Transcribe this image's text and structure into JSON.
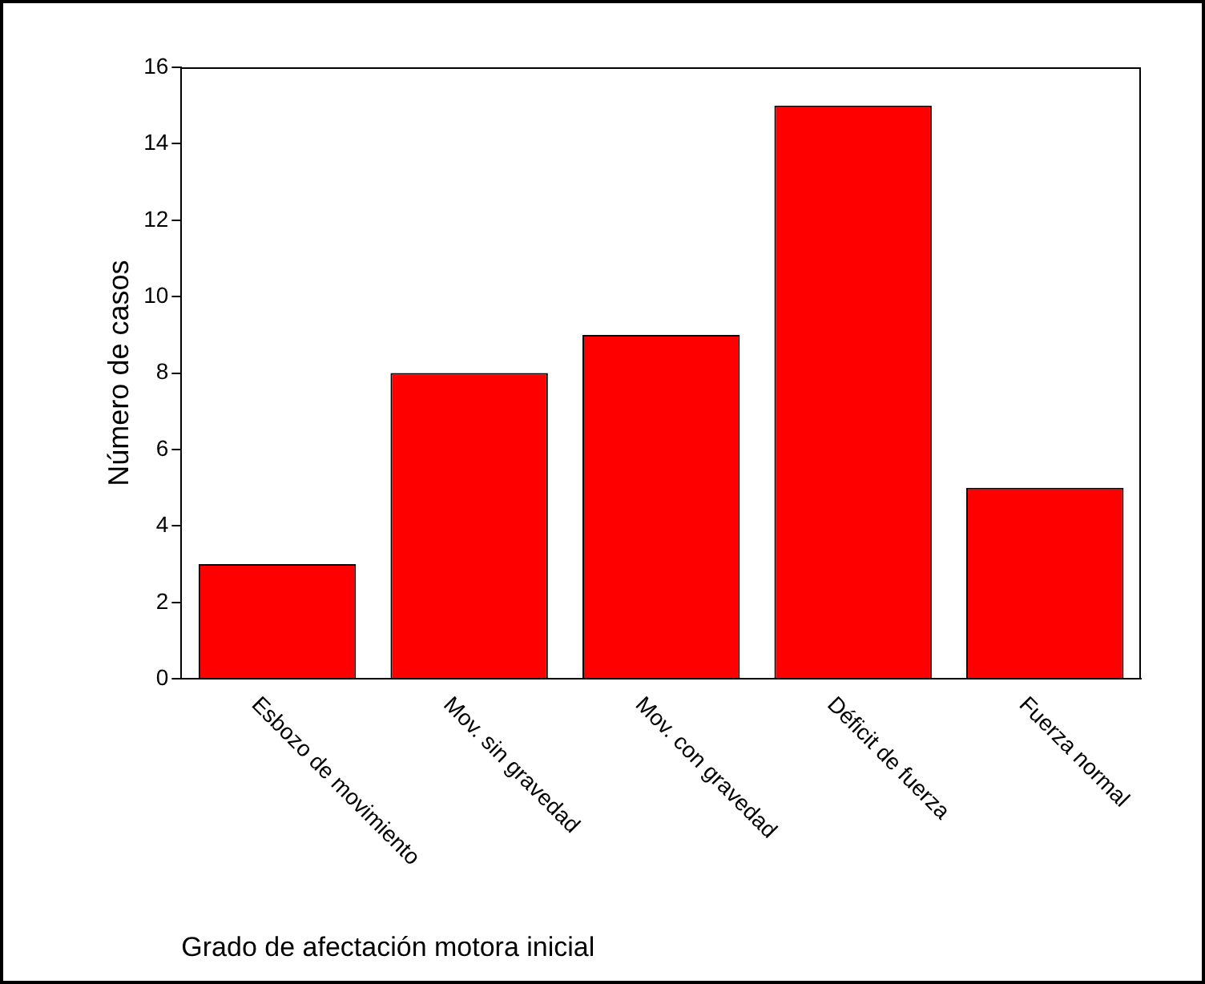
{
  "chart_data": {
    "type": "bar",
    "xlabel": "Grado de afectación motora inicial",
    "ylabel": "Número de casos",
    "categories": [
      "Esbozo de movimiento",
      "Mov. sin gravedad",
      "Mov. con gravedad",
      "Déficit de fuerza",
      "Fuerza normal"
    ],
    "values": [
      3,
      8,
      9,
      15,
      5
    ],
    "color": "#ff0000",
    "ylim": [
      0,
      16
    ],
    "yticks": [
      0,
      2,
      4,
      6,
      8,
      10,
      12,
      14,
      16
    ],
    "grid": false,
    "legend": false
  }
}
